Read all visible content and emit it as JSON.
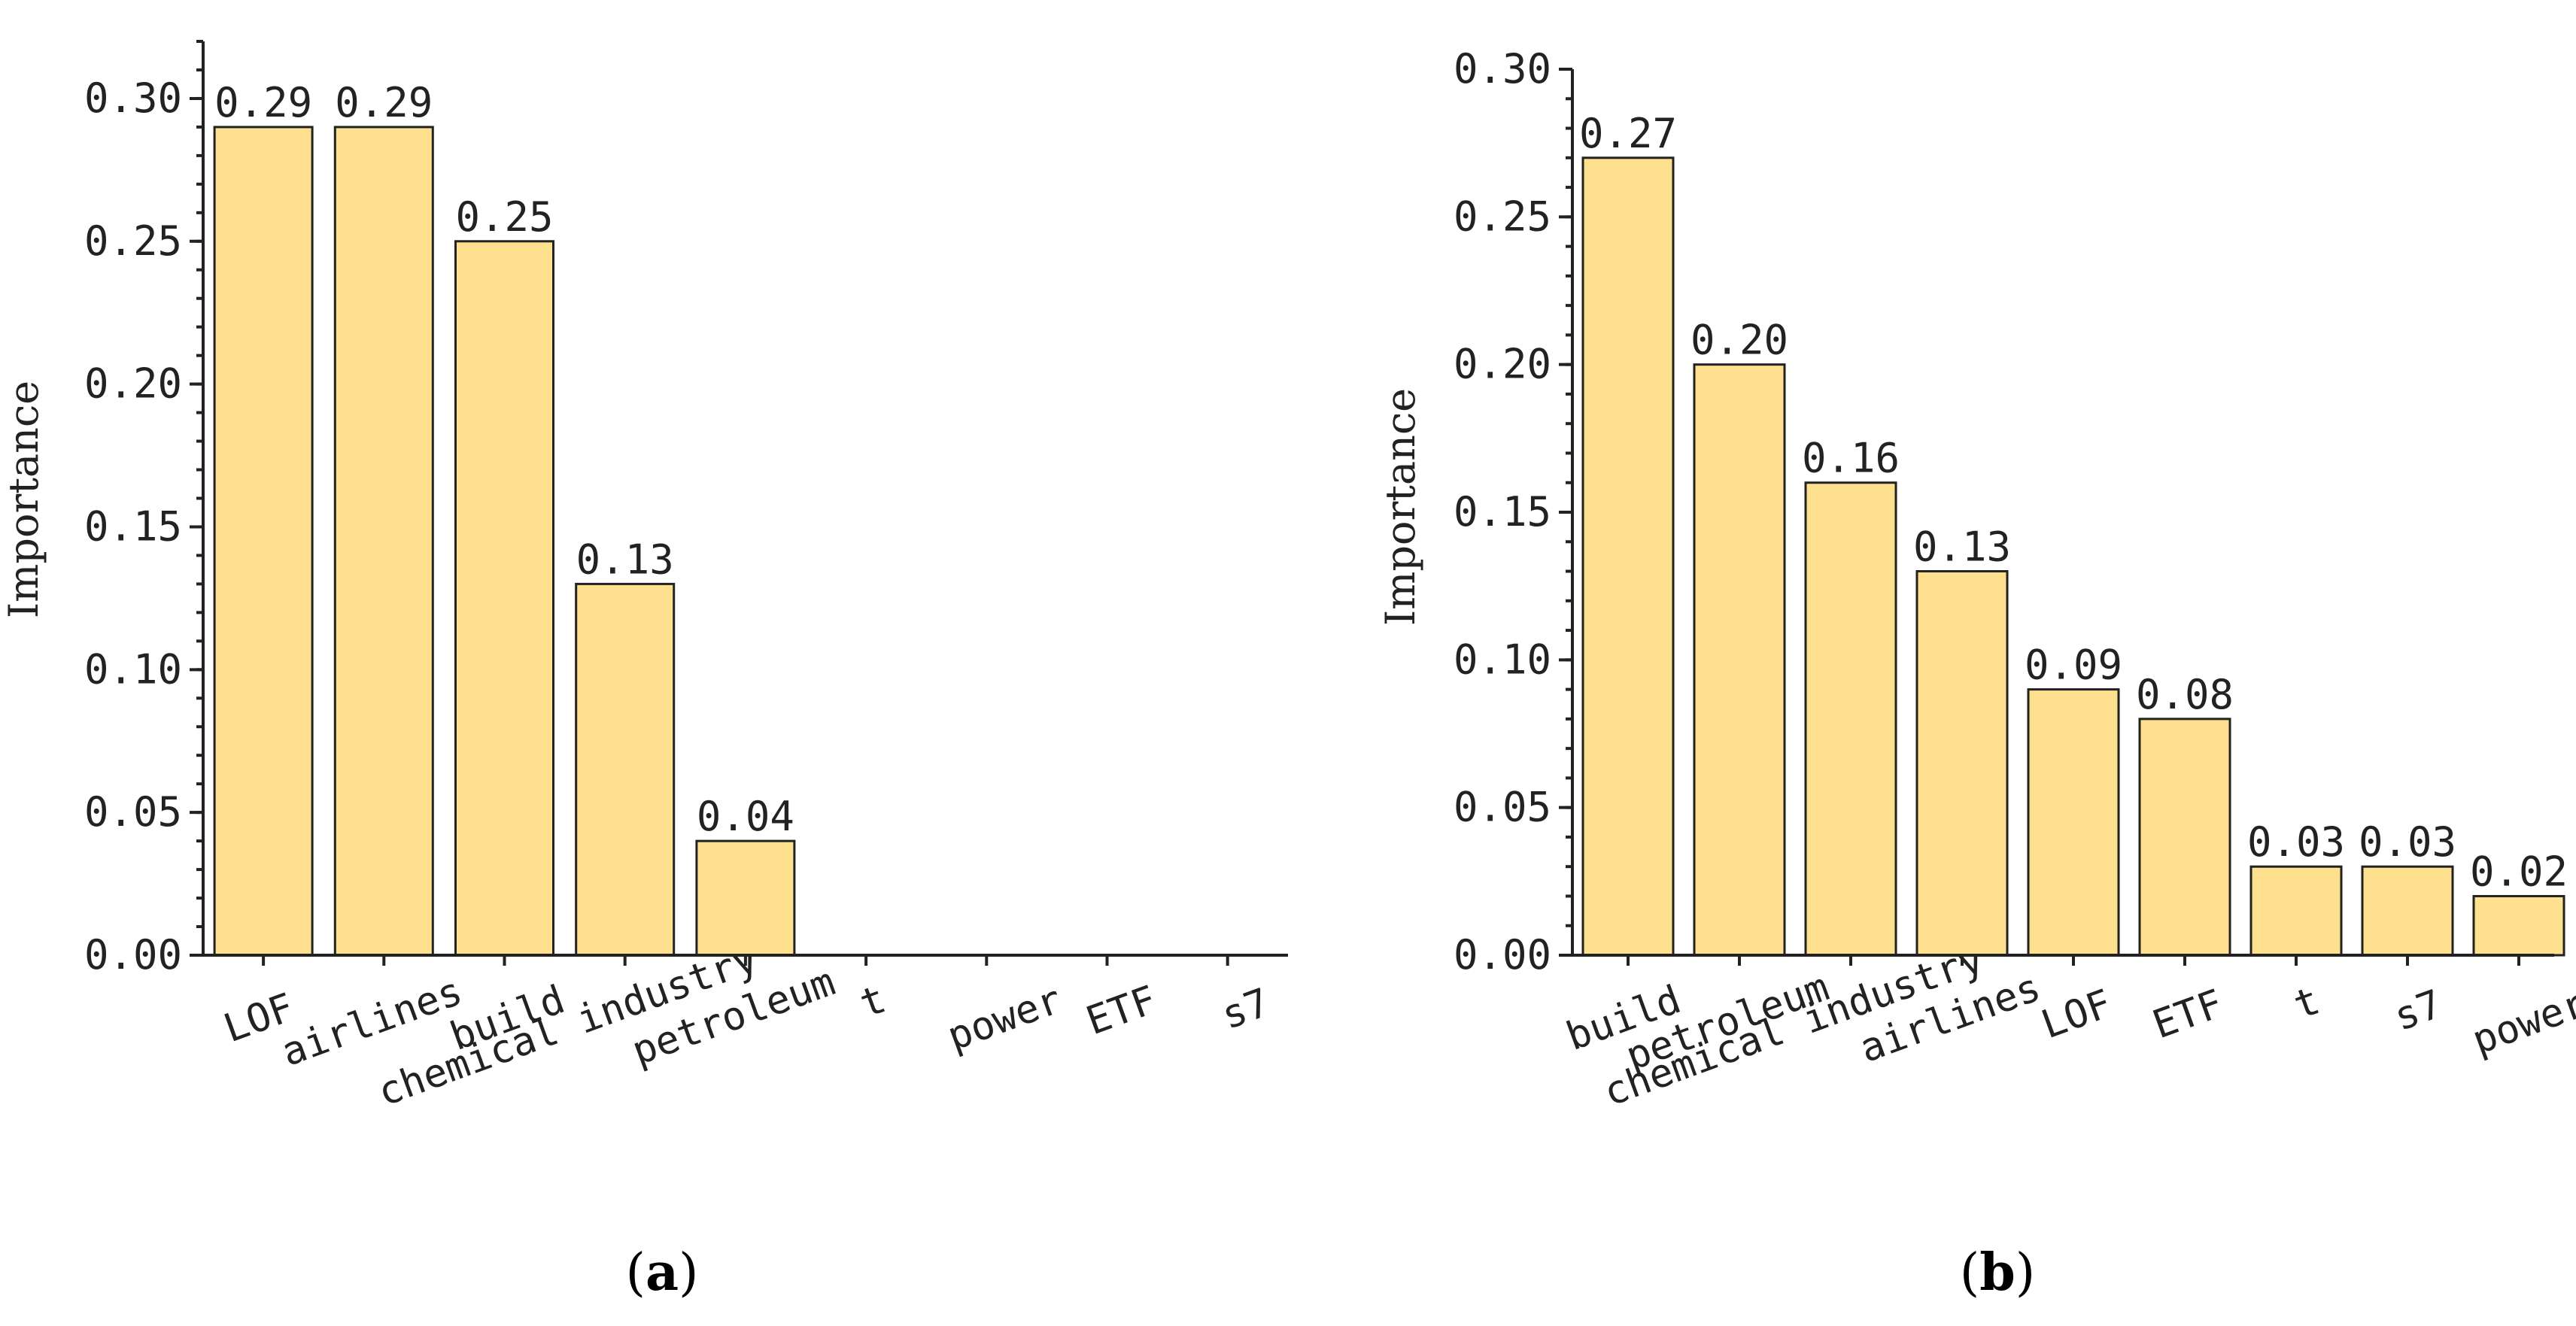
{
  "colors": {
    "bar_fill": "#FFE08F",
    "axis": "#222222"
  },
  "chart_data": [
    {
      "id": "a",
      "type": "bar",
      "caption": "a",
      "ylabel": "Importance",
      "ylim": [
        0,
        0.32
      ],
      "yticks": [
        "0.00",
        "0.05",
        "0.10",
        "0.15",
        "0.20",
        "0.25",
        "0.30"
      ],
      "categories": [
        "LOF",
        "airlines",
        "build",
        "chemical industry",
        "petroleum",
        "t",
        "power",
        "ETF",
        "s7"
      ],
      "values": [
        0.29,
        0.29,
        0.25,
        0.13,
        0.04,
        0,
        0,
        0,
        0
      ],
      "labels": [
        "0.29",
        "0.29",
        "0.25",
        "0.13",
        "0.04",
        "",
        "",
        "",
        ""
      ]
    },
    {
      "id": "b",
      "type": "bar",
      "caption": "b",
      "ylabel": "Importance",
      "ylim": [
        0,
        0.3
      ],
      "yticks": [
        "0.00",
        "0.05",
        "0.10",
        "0.15",
        "0.20",
        "0.25",
        "0.30"
      ],
      "categories": [
        "build",
        "petroleum",
        "chemical industry",
        "airlines",
        "LOF",
        "ETF",
        "t",
        "s7",
        "power"
      ],
      "values": [
        0.27,
        0.2,
        0.16,
        0.13,
        0.09,
        0.08,
        0.03,
        0.03,
        0.02
      ],
      "labels": [
        "0.27",
        "0.20",
        "0.16",
        "0.13",
        "0.09",
        "0.08",
        "0.03",
        "0.03",
        "0.02"
      ]
    }
  ]
}
